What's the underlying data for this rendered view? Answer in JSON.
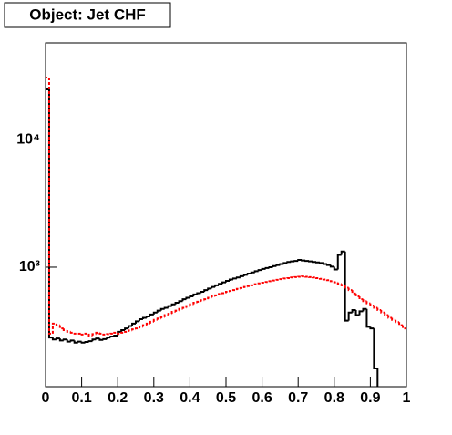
{
  "chart_data": {
    "type": "histogram",
    "title": "Object: Jet CHF",
    "log_y": true,
    "bins": [
      0,
      0.01,
      0.02,
      0.03,
      0.04,
      0.05,
      0.06,
      0.07,
      0.08,
      0.09,
      0.1,
      0.11,
      0.12,
      0.13,
      0.14,
      0.15,
      0.16,
      0.17,
      0.18,
      0.19,
      0.2,
      0.21,
      0.22,
      0.23,
      0.24,
      0.25,
      0.26,
      0.27,
      0.28,
      0.29,
      0.3,
      0.31,
      0.32,
      0.33,
      0.34,
      0.35,
      0.36,
      0.37,
      0.38,
      0.39,
      0.4,
      0.41,
      0.42,
      0.43,
      0.44,
      0.45,
      0.46,
      0.47,
      0.48,
      0.49,
      0.5,
      0.51,
      0.52,
      0.53,
      0.54,
      0.55,
      0.56,
      0.57,
      0.58,
      0.59,
      0.6,
      0.61,
      0.62,
      0.63,
      0.64,
      0.65,
      0.66,
      0.67,
      0.68,
      0.69,
      0.7,
      0.71,
      0.72,
      0.73,
      0.74,
      0.75,
      0.76,
      0.77,
      0.78,
      0.79,
      0.8,
      0.81,
      0.82,
      0.83,
      0.84,
      0.85,
      0.86,
      0.87,
      0.88,
      0.89,
      0.9,
      0.91,
      0.92,
      0.93,
      0.94,
      0.95,
      0.96,
      0.97,
      0.98,
      0.99,
      1
    ],
    "series": [
      {
        "color": "#000000",
        "dashed": false,
        "values": [
          25000,
          280,
          270,
          275,
          265,
          270,
          260,
          265,
          255,
          260,
          255,
          258,
          262,
          270,
          275,
          268,
          272,
          280,
          285,
          290,
          310,
          320,
          330,
          345,
          360,
          375,
          390,
          400,
          410,
          425,
          440,
          455,
          470,
          480,
          495,
          510,
          525,
          540,
          560,
          575,
          590,
          610,
          625,
          640,
          660,
          680,
          700,
          720,
          740,
          760,
          780,
          800,
          815,
          830,
          850,
          870,
          890,
          910,
          930,
          950,
          970,
          985,
          1000,
          1020,
          1040,
          1060,
          1080,
          1100,
          1110,
          1120,
          1140,
          1130,
          1120,
          1110,
          1100,
          1090,
          1080,
          1060,
          1040,
          1010,
          960,
          1250,
          1330,
          380,
          440,
          460,
          420,
          450,
          470,
          340,
          330,
          160,
          0,
          0,
          0,
          0,
          0,
          0,
          0,
          0
        ]
      },
      {
        "color": "#ff0000",
        "dashed": true,
        "values": [
          31000,
          300,
          360,
          350,
          330,
          320,
          310,
          305,
          300,
          300,
          295,
          300,
          290,
          298,
          305,
          300,
          295,
          298,
          300,
          305,
          300,
          305,
          310,
          318,
          325,
          330,
          340,
          350,
          360,
          372,
          385,
          395,
          405,
          420,
          430,
          445,
          455,
          470,
          480,
          495,
          510,
          525,
          535,
          550,
          560,
          575,
          590,
          600,
          615,
          625,
          640,
          650,
          660,
          675,
          685,
          700,
          710,
          720,
          735,
          745,
          755,
          765,
          775,
          785,
          795,
          805,
          815,
          820,
          830,
          835,
          840,
          845,
          840,
          835,
          830,
          820,
          810,
          800,
          790,
          775,
          760,
          740,
          720,
          690,
          660,
          620,
          590,
          560,
          540,
          520,
          500,
          480,
          460,
          440,
          420,
          400,
          385,
          370,
          350,
          330
        ]
      }
    ],
    "xlim": [
      0,
      1
    ],
    "xticks": [
      0,
      0.1,
      0.2,
      0.3,
      0.4,
      0.5,
      0.6,
      0.7,
      0.8,
      0.9,
      1
    ],
    "ylim": [
      115,
      58000
    ],
    "yticks": [
      {
        "value": 1000,
        "label": "10³"
      },
      {
        "value": 10000,
        "label": "10⁴"
      }
    ]
  }
}
